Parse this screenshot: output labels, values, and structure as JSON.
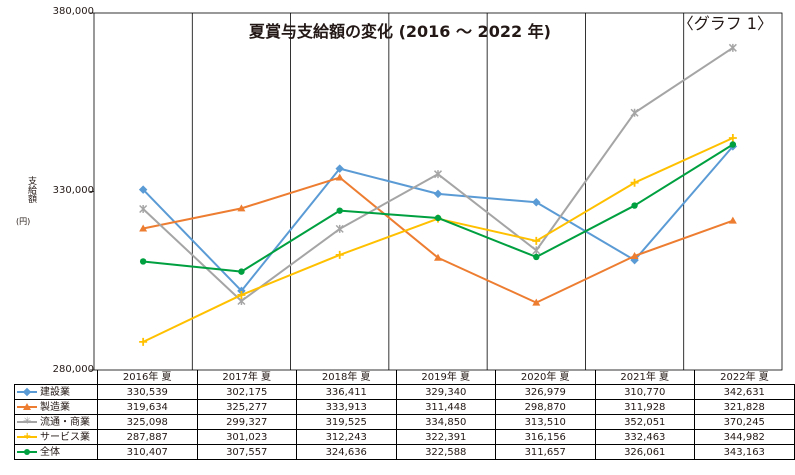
{
  "header": {
    "graph_label": "〈グラフ 1〉"
  },
  "chart_data": {
    "type": "line",
    "title": "夏賞与支給額の変化 (2016 ～ 2022 年)",
    "ylabel": "支給額",
    "yunit": "(円)",
    "ylim": [
      280000,
      380000
    ],
    "yticks": [
      "280,000",
      "330,000",
      "380,000"
    ],
    "categories": [
      "2016年 夏",
      "2017年 夏",
      "2018年 夏",
      "2019年 夏",
      "2020年 夏",
      "2021年 夏",
      "2022年 夏"
    ],
    "series": [
      {
        "name": "建設業",
        "color": "#5b9bd5",
        "marker": "diamond",
        "values": [
          330539,
          302175,
          336411,
          329340,
          326979,
          310770,
          342631
        ],
        "labels": [
          "330,539",
          "302,175",
          "336,411",
          "329,340",
          "326,979",
          "310,770",
          "342,631"
        ]
      },
      {
        "name": "製造業",
        "color": "#ed7d31",
        "marker": "triangle",
        "values": [
          319634,
          325277,
          333913,
          311448,
          298870,
          311928,
          321828
        ],
        "labels": [
          "319,634",
          "325,277",
          "333,913",
          "311,448",
          "298,870",
          "311,928",
          "321,828"
        ]
      },
      {
        "name": "流通・商業",
        "color": "#a5a5a5",
        "marker": "star",
        "values": [
          325098,
          299327,
          319525,
          334850,
          313510,
          352051,
          370245
        ],
        "labels": [
          "325,098",
          "299,327",
          "319,525",
          "334,850",
          "313,510",
          "352,051",
          "370,245"
        ]
      },
      {
        "name": "サービス業",
        "color": "#ffc000",
        "marker": "cross",
        "values": [
          287887,
          301023,
          312243,
          322391,
          316156,
          332463,
          344982
        ],
        "labels": [
          "287,887",
          "301,023",
          "312,243",
          "322,391",
          "316,156",
          "332,463",
          "344,982"
        ]
      },
      {
        "name": "全体",
        "color": "#00a040",
        "marker": "circle",
        "values": [
          310407,
          307557,
          324636,
          322588,
          311657,
          326061,
          343163
        ],
        "labels": [
          "310,407",
          "307,557",
          "324,636",
          "322,588",
          "311,657",
          "326,061",
          "343,163"
        ]
      }
    ]
  }
}
